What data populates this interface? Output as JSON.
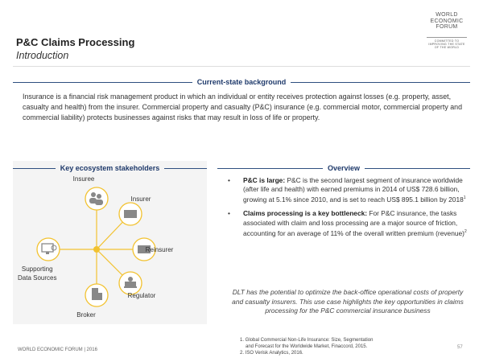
{
  "header": {
    "title": "P&C Claims Processing",
    "subtitle": "Introduction"
  },
  "logo": {
    "lines": [
      "WORLD",
      "ECONOMIC",
      "FORUM"
    ],
    "tagline": "COMMITTED TO IMPROVING THE STATE OF THE WORLD"
  },
  "background": {
    "heading": "Current-state background",
    "text": "Insurance is a financial risk management product in which an individual or entity receives protection against losses (e.g. property, asset, casualty and health) from the insurer. Commercial property and casualty (P&C) insurance (e.g. commercial motor, commercial property and commercial liability) protects businesses against risks that may result in loss of life or property."
  },
  "stakeholders": {
    "heading": "Key ecosystem stakeholders",
    "accent": "#f2c230",
    "nodes": [
      {
        "label": "Insuree",
        "icon": "people-icon"
      },
      {
        "label": "Insurer",
        "icon": "building-icon"
      },
      {
        "label": "Reinsurer",
        "icon": "building-icon"
      },
      {
        "label": "Regulator",
        "icon": "capitol-icon"
      },
      {
        "label": "Broker",
        "icon": "office-tower-icon"
      },
      {
        "label_line1": "Supporting",
        "label_line2": "Data Sources",
        "icon": "monitor-search-icon"
      }
    ]
  },
  "overview": {
    "heading": "Overview",
    "bullets": [
      {
        "bold": "P&C is large:",
        "text": " P&C is the second largest segment of insurance worldwide (after life and health) with earned premiums in 2014 of US$ 728.6 billion, growing at 5.1% since 2010, and is set to reach US$ 895.1 billion by 2018",
        "sup": "1"
      },
      {
        "bold": "Claims processing is a key bottleneck:",
        "text": " For P&C insurance, the tasks associated with claim and loss processing are a major source of friction, accounting for an average of 11% of the overall written premium (revenue)",
        "sup": "2"
      }
    ],
    "conclusion": "DLT has the potential to optimize the back-office operational costs of property and casualty insurers. This use case highlights the key opportunities in claims processing for the P&C commercial insurance business"
  },
  "footnotes": [
    "1. Global Commercial Non-Life Insurance: Size, Segmentation",
    "and Forecast for the Worldwide Market, Finaccord, 2015.",
    "2. ISO Verisk Analytics, 2016."
  ],
  "footer": {
    "left": "WORLD ECONOMIC FORUM | 2016",
    "page": "57"
  }
}
